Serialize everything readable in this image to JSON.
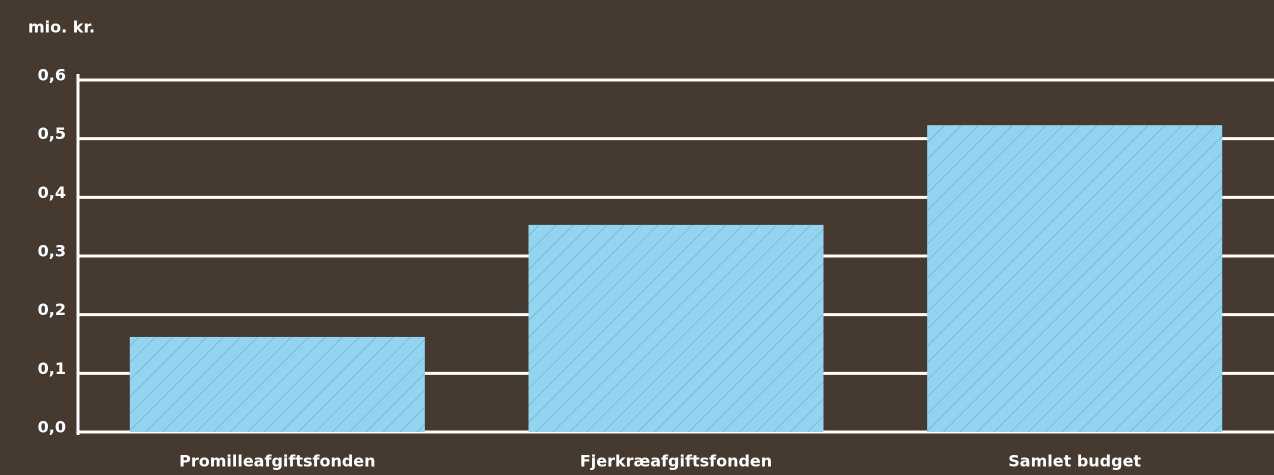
{
  "chart_data": {
    "type": "bar",
    "y_label": "mio. kr.",
    "categories": [
      "Promilleafgiftsfonden",
      "Fjerkræafgiftsfonden",
      "Samlet budget"
    ],
    "values": [
      0.162,
      0.353,
      0.523
    ],
    "color": "#93d4f1",
    "ylim": [
      0,
      0.6
    ],
    "yticks": [
      {
        "value": 0,
        "label": "0,0"
      },
      {
        "value": 0.1,
        "label": "0,1"
      },
      {
        "value": 0.2,
        "label": "0,2"
      },
      {
        "value": 0.3,
        "label": "0,3"
      },
      {
        "value": 0.4,
        "label": "0,4"
      },
      {
        "value": 0.5,
        "label": "0,5"
      },
      {
        "value": 0.6,
        "label": "0,6"
      }
    ],
    "grid": true
  }
}
